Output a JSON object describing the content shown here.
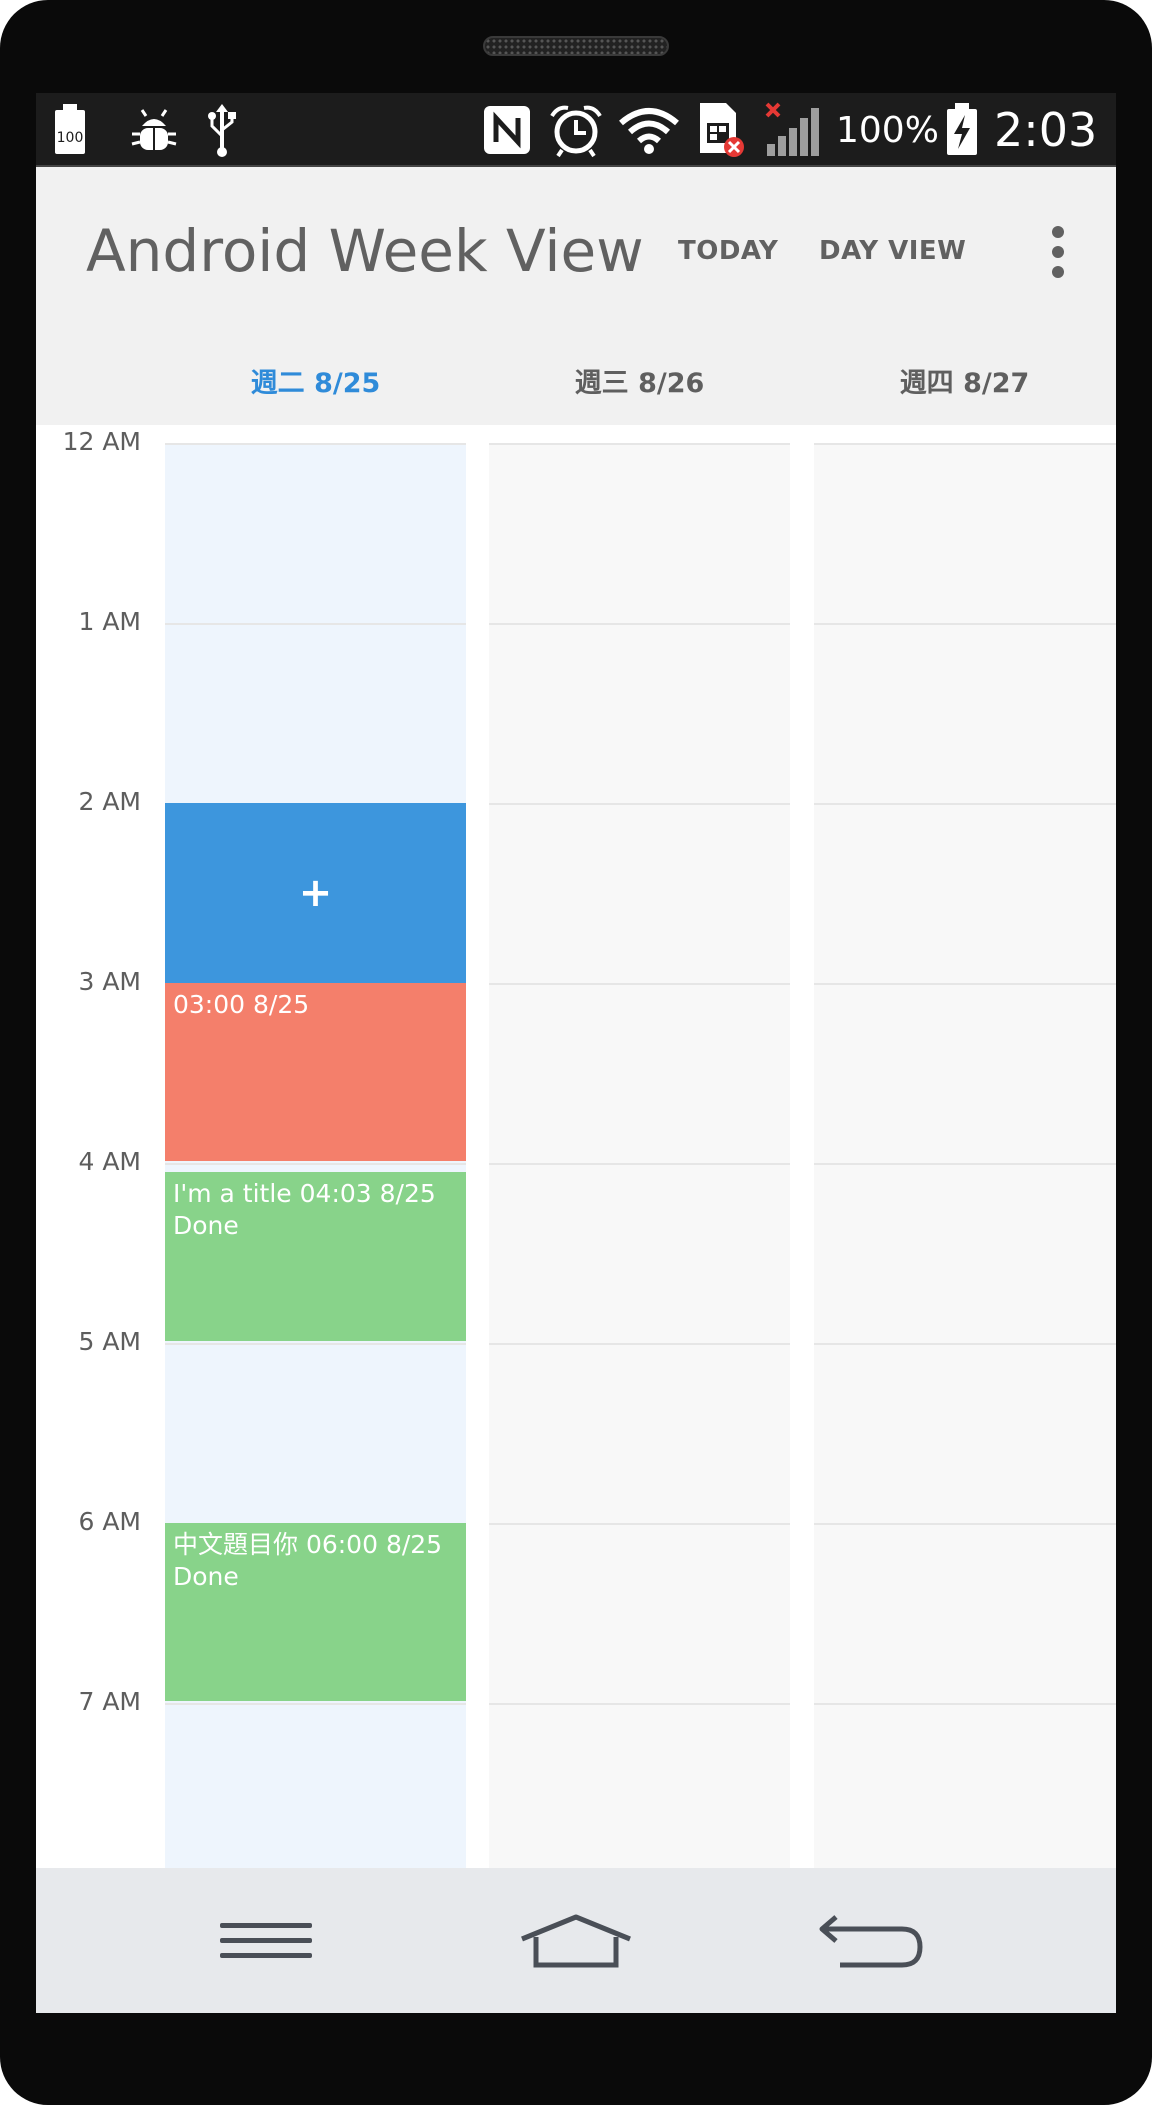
{
  "status_bar": {
    "battery_badge": "100",
    "battery_percent": "100%",
    "time": "2:03",
    "icons": [
      "battery-100-icon",
      "debug-bug-icon",
      "usb-icon",
      "nfc-icon",
      "alarm-clock-icon",
      "wifi-icon",
      "sim-error-icon",
      "signal-no-service-icon",
      "battery-charging-icon"
    ]
  },
  "app_bar": {
    "title": "Android Week View",
    "today_label": "TODAY",
    "day_view_label": "DAY VIEW",
    "overflow_icon": "more-vertical-icon"
  },
  "week": {
    "days": [
      {
        "label": "週二 8/25",
        "is_today": true
      },
      {
        "label": "週三 8/26",
        "is_today": false
      },
      {
        "label": "週四 8/27",
        "is_today": false
      }
    ],
    "hours": [
      "12 AM",
      "1 AM",
      "2 AM",
      "3 AM",
      "4 AM",
      "5 AM",
      "6 AM",
      "7 AM"
    ],
    "today_color": "#2f8bd9"
  },
  "events": [
    {
      "kind": "new",
      "label": "+",
      "color": "#3d96dd",
      "start_hour": 2.0,
      "end_hour": 3.0
    },
    {
      "kind": "event",
      "title": "03:00 8/25",
      "subtitle": "",
      "color": "#f47f6b",
      "start_hour": 3.0,
      "end_hour": 4.0
    },
    {
      "kind": "event",
      "title": "I'm a title  04:03 8/25",
      "subtitle": "Done",
      "color": "#88d38a",
      "start_hour": 4.05,
      "end_hour": 5.0
    },
    {
      "kind": "event",
      "title": "中文題目你 06:00 8/25",
      "subtitle": "Done",
      "color": "#88d38a",
      "start_hour": 6.0,
      "end_hour": 7.0
    }
  ],
  "nav_bar": {
    "icons": [
      "menu-icon",
      "home-icon",
      "back-icon"
    ]
  }
}
